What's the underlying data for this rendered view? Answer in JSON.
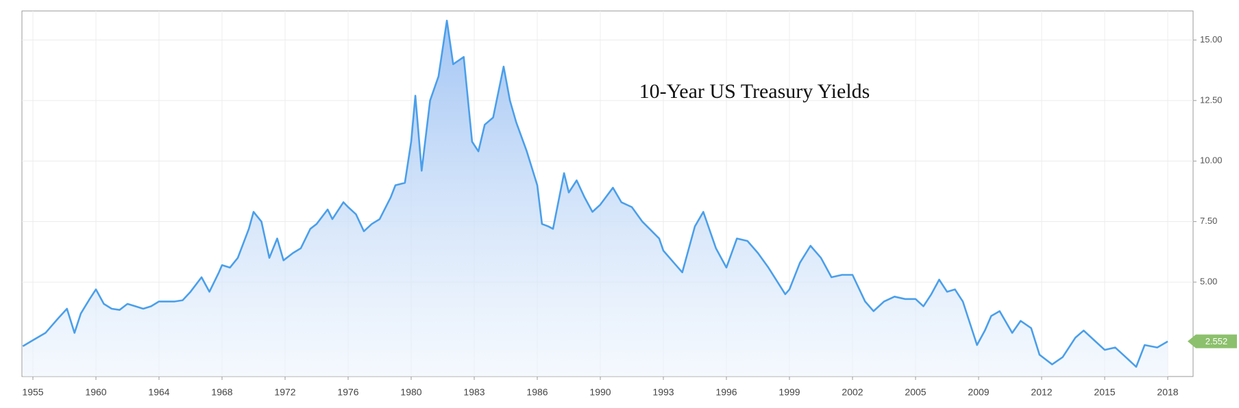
{
  "chart_data": {
    "type": "area",
    "title": "10-Year US Treasury Yields",
    "x": [
      1954.2,
      1955,
      1956,
      1956.5,
      1957,
      1957.7,
      1958.3,
      1958.8,
      1959.5,
      1960,
      1960.5,
      1961,
      1961.5,
      1962,
      1962.5,
      1963,
      1963.5,
      1964,
      1965,
      1965.5,
      1966,
      1966.7,
      1967.2,
      1967.8,
      1968,
      1968.5,
      1969,
      1969.7,
      1970,
      1970.5,
      1971,
      1971.5,
      1971.9,
      1972.5,
      1973,
      1973.6,
      1974,
      1974.7,
      1975,
      1975.7,
      1976,
      1976.5,
      1977,
      1977.5,
      1978,
      1978.7,
      1979,
      1979.6,
      1980,
      1980.2,
      1980.5,
      1980.9,
      1981.3,
      1981.7,
      1982,
      1982.5,
      1982.9,
      1983.2,
      1983.5,
      1983.9,
      1984.4,
      1984.7,
      1985,
      1985.5,
      1986,
      1986.3,
      1986.7,
      1987,
      1987.7,
      1988,
      1988.5,
      1989,
      1989.5,
      1990,
      1990.6,
      1991,
      1991.5,
      1992,
      1992.8,
      1993,
      1993.5,
      1993.9,
      1994.5,
      1994.9,
      1995.5,
      1996,
      1996.5,
      1997,
      1997.5,
      1998,
      1998.8,
      1999,
      1999.5,
      2000,
      2000.5,
      2001,
      2001.5,
      2002,
      2002.6,
      2003,
      2003.5,
      2004,
      2004.5,
      2005,
      2005.5,
      2006,
      2006.5,
      2007,
      2007.5,
      2008,
      2008.9,
      2009.3,
      2009.6,
      2010,
      2010.6,
      2011,
      2011.5,
      2011.9,
      2012.5,
      2013,
      2013.6,
      2014,
      2014.5,
      2015,
      2015.5,
      2016,
      2016.5,
      2016.9,
      2017.5,
      2018
    ],
    "values": [
      2.35,
      2.6,
      2.9,
      3.2,
      3.5,
      3.9,
      2.9,
      3.7,
      4.3,
      4.7,
      4.1,
      3.9,
      3.85,
      4.1,
      4.0,
      3.9,
      4.0,
      4.2,
      4.2,
      4.25,
      4.6,
      5.2,
      4.6,
      5.4,
      5.7,
      5.6,
      6.0,
      7.2,
      7.9,
      7.5,
      6.0,
      6.8,
      5.9,
      6.2,
      6.4,
      7.2,
      7.4,
      8.0,
      7.6,
      8.3,
      8.1,
      7.8,
      7.1,
      7.4,
      7.6,
      8.5,
      9.0,
      9.1,
      10.8,
      12.7,
      9.6,
      12.5,
      13.5,
      15.8,
      14.0,
      14.3,
      10.8,
      10.4,
      11.5,
      11.8,
      13.9,
      12.5,
      11.6,
      10.4,
      9.0,
      7.4,
      7.3,
      7.2,
      9.5,
      8.7,
      9.2,
      8.5,
      7.9,
      8.2,
      8.9,
      8.3,
      8.1,
      7.5,
      6.8,
      6.3,
      5.8,
      5.4,
      7.3,
      7.9,
      6.4,
      5.6,
      6.8,
      6.7,
      6.2,
      5.6,
      4.5,
      4.7,
      5.8,
      6.5,
      6.0,
      5.2,
      5.3,
      5.3,
      4.2,
      3.8,
      4.2,
      4.4,
      4.3,
      4.3,
      4.0,
      4.5,
      5.1,
      4.6,
      4.7,
      4.2,
      2.4,
      3.0,
      3.6,
      3.8,
      2.9,
      3.4,
      3.1,
      2.0,
      1.6,
      1.9,
      2.7,
      3.0,
      2.6,
      2.2,
      2.3,
      1.9,
      1.5,
      2.4,
      2.3,
      2.552
    ],
    "color": "#4a9fea",
    "xlim": [
      1954.2,
      2018.4
    ],
    "xticks": [
      1955,
      1960,
      1964,
      1968,
      1972,
      1976,
      1980,
      1983,
      1986,
      1990,
      1993,
      1996,
      1999,
      2002,
      2005,
      2009,
      2012,
      2015,
      2018
    ],
    "ylim": [
      1.1,
      16.2
    ],
    "yticks": [
      {
        "value": 5,
        "label": "5.00"
      },
      {
        "value": 7.5,
        "label": "7.50"
      },
      {
        "value": 10,
        "label": "10.00"
      },
      {
        "value": 12.5,
        "label": "12.50"
      },
      {
        "value": 15,
        "label": "15.00"
      }
    ],
    "grid": true
  }
}
